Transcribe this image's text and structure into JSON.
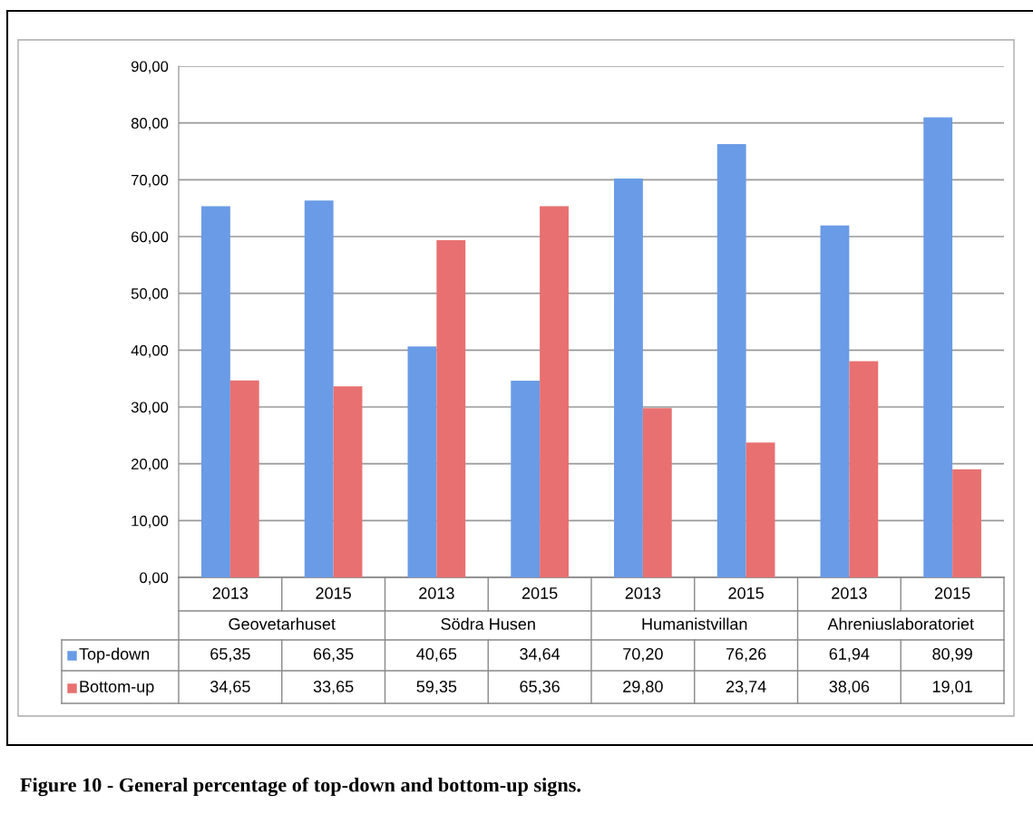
{
  "chart_data": {
    "type": "bar",
    "title": "Figure 10 - General percentage of top-down and bottom-up signs.",
    "categories": [
      "2013",
      "2015",
      "2013",
      "2015",
      "2013",
      "2015",
      "2013",
      "2015"
    ],
    "annotations": [
      "Geovetarhuset",
      "Södra Husen",
      "Humanistvillan",
      "Ahreniuslaboratoriet"
    ],
    "series": [
      {
        "name": "Top-down",
        "color": "#6a9be6",
        "values": [
          65.35,
          66.35,
          40.65,
          34.64,
          70.2,
          76.26,
          61.94,
          80.99
        ]
      },
      {
        "name": "Bottom-up",
        "color": "#e87070",
        "values": [
          34.65,
          33.65,
          59.35,
          65.36,
          29.8,
          23.74,
          38.06,
          19.01
        ]
      }
    ],
    "value_labels": [
      [
        "65,35",
        "66,35",
        "40,65",
        "34,64",
        "70,20",
        "76,26",
        "61,94",
        "80,99"
      ],
      [
        "34,65",
        "33,65",
        "59,35",
        "65,36",
        "29,80",
        "23,74",
        "38,06",
        "19,01"
      ]
    ],
    "ylim": [
      0,
      90
    ],
    "yticks": [
      {
        "value": 0,
        "label": "0,00"
      },
      {
        "value": 10,
        "label": "10,00"
      },
      {
        "value": 20,
        "label": "20,00"
      },
      {
        "value": 30,
        "label": "30,00"
      },
      {
        "value": 40,
        "label": "40,00"
      },
      {
        "value": 50,
        "label": "50,00"
      },
      {
        "value": 60,
        "label": "60,00"
      },
      {
        "value": 70,
        "label": "70,00"
      },
      {
        "value": 80,
        "label": "80,00"
      },
      {
        "value": 90,
        "label": "90,00"
      }
    ],
    "grid": "y",
    "legend": "bottom left"
  }
}
